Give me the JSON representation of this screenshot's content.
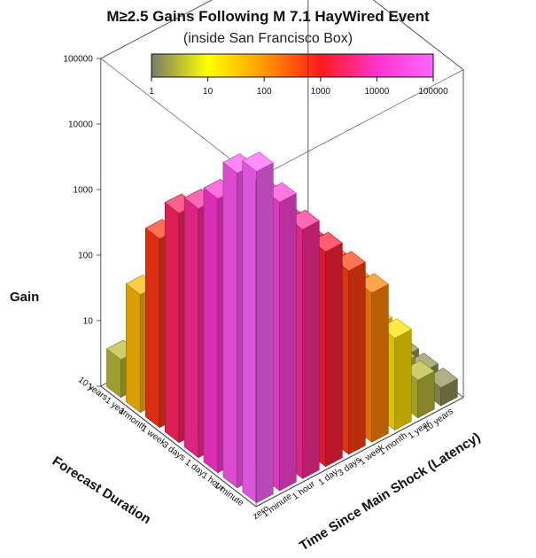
{
  "chart_data": {
    "type": "bar3d",
    "title": "M≥2.5 Gains Following M 7.1 HayWired Event",
    "subtitle": "(inside San Francisco Box)",
    "zlabel": "Gain",
    "xlabel": "Forecast Duration",
    "ylabel": "Time Since Main Shock (Latency)",
    "z_scale": "log",
    "zlim": [
      1,
      100000
    ],
    "z_ticks": [
      "1",
      "10",
      "100",
      "1000",
      "10000",
      "100000"
    ],
    "colorbar": {
      "scale": "log",
      "range": [
        1,
        100000
      ],
      "ticks": [
        "1",
        "10",
        "100",
        "1000",
        "10000",
        "100000"
      ],
      "colors": [
        "#7a7a6a",
        "#ffff00",
        "#ff9900",
        "#ff1a1a",
        "#ff33cc",
        "#ff66ff"
      ]
    },
    "forecast_duration": [
      "1 minute",
      "1 hour",
      "1 day",
      "3 days",
      "1 week",
      "1 month",
      "1 year",
      "10 years"
    ],
    "latency": [
      "zero",
      "1 minute",
      "1 hour",
      "1 day",
      "3 days",
      "1 week",
      "1 month",
      "1 year",
      "10 years"
    ],
    "gain": [
      [
        90000,
        20000,
        5000,
        1500,
        500,
        150,
        20,
        3,
        1.5
      ],
      [
        50000,
        15000,
        4000,
        1200,
        400,
        120,
        18,
        3,
        1.5
      ],
      [
        12000,
        6000,
        2500,
        900,
        300,
        100,
        15,
        3,
        1.5
      ],
      [
        5000,
        3000,
        1500,
        600,
        250,
        80,
        12,
        2.5,
        1.5
      ],
      [
        2500,
        1500,
        900,
        400,
        180,
        60,
        10,
        2.5,
        1.5
      ],
      [
        600,
        400,
        300,
        180,
        100,
        40,
        8,
        2,
        1.5
      ],
      [
        50,
        40,
        30,
        25,
        20,
        12,
        5,
        2,
        1.5
      ],
      [
        3,
        3,
        3,
        3,
        3,
        3,
        2.5,
        2,
        1.5
      ]
    ]
  }
}
